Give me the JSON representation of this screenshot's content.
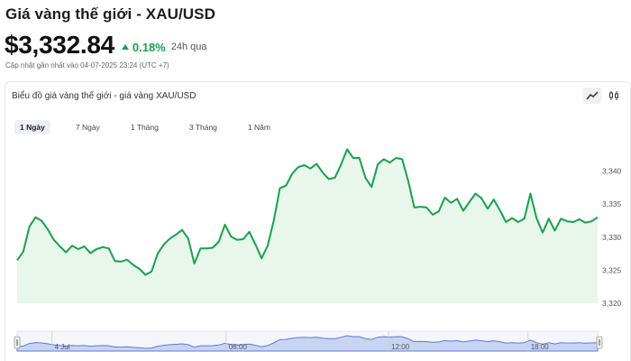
{
  "header": {
    "title": "Giá vàng thế giới - XAU/USD",
    "price": "$3,332.84",
    "change": "0.18%",
    "period": "24h qua",
    "updated": "Cập nhật gần nhất vào 04-07-2025 23:24 (UTC +7)"
  },
  "chart_card": {
    "title": "Biểu đồ giá vàng thế giới - giá vàng XAU/USD",
    "tabs": [
      {
        "label": "1 Ngày",
        "active": true
      },
      {
        "label": "7 Ngày",
        "active": false
      },
      {
        "label": "1 Tháng",
        "active": false
      },
      {
        "label": "3 Tháng",
        "active": false
      },
      {
        "label": "1 Năm",
        "active": false
      }
    ],
    "chart_type_buttons": [
      {
        "icon": "line-chart-icon",
        "active": true
      },
      {
        "icon": "candlestick-icon",
        "active": false
      }
    ]
  },
  "colors": {
    "line": "#16a34a",
    "area": "#e8f6ec",
    "up": "#16a34a",
    "navigator_fill": "#c9d4f2",
    "navigator_line": "#5b7bd5"
  },
  "chart_data": {
    "type": "area",
    "title": "Biểu đồ giá vàng thế giới - giá vàng XAU/USD",
    "xlabel": "",
    "ylabel": "",
    "ylim": [
      3320,
      3345
    ],
    "y_ticks": [
      "3,320",
      "3,325",
      "3,330",
      "3,335",
      "3,340"
    ],
    "y_tick_values": [
      3320,
      3325,
      3330,
      3335,
      3340
    ],
    "grid": false,
    "series": [
      {
        "values": [
          3326.5,
          3327.8,
          3331.6,
          3333.0,
          3332.5,
          3331.2,
          3329.6,
          3328.6,
          3327.7,
          3328.7,
          3328.2,
          3328.6,
          3327.6,
          3328.2,
          3328.5,
          3328.3,
          3326.4,
          3326.3,
          3326.6,
          3325.8,
          3325.2,
          3324.3,
          3324.8,
          3327.5,
          3328.9,
          3329.8,
          3330.4,
          3331.1,
          3329.8,
          3326.0,
          3328.3,
          3328.3,
          3328.4,
          3329.3,
          3331.9,
          3330.1,
          3329.6,
          3329.7,
          3330.8,
          3328.9,
          3326.8,
          3328.7,
          3332.5,
          3337.4,
          3337.8,
          3339.6,
          3340.6,
          3340.9,
          3340.4,
          3341.1,
          3339.8,
          3338.8,
          3339.0,
          3341.0,
          3343.3,
          3342.0,
          3342.0,
          3339.0,
          3337.6,
          3341.0,
          3341.8,
          3341.3,
          3342.0,
          3341.8,
          3338.5,
          3334.5,
          3334.6,
          3334.5,
          3333.4,
          3333.9,
          3336.0,
          3335.2,
          3335.8,
          3334.0,
          3335.3,
          3336.6,
          3335.9,
          3334.3,
          3335.7,
          3334.1,
          3332.3,
          3332.9,
          3332.3,
          3332.8,
          3336.6,
          3332.9,
          3330.7,
          3332.8,
          3331.0,
          3332.8,
          3332.4,
          3332.3,
          3332.7,
          3332.2,
          3332.4,
          3333.0
        ]
      }
    ],
    "x_tick_labels": [
      "4 Jul",
      "06:00",
      "12:00",
      "18:00"
    ],
    "x_tick_positions": [
      0.06,
      0.36,
      0.64,
      0.88
    ]
  }
}
